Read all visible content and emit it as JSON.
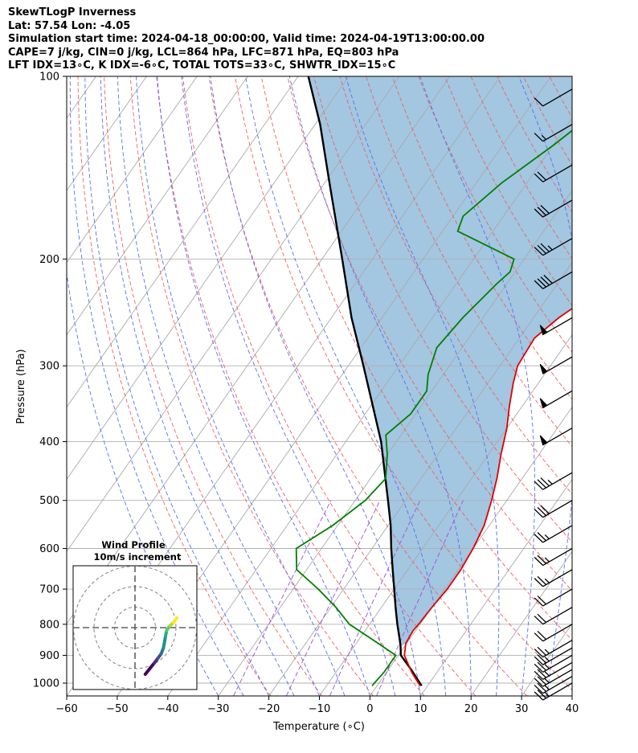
{
  "header": {
    "line1": "SkewTLogP Inverness",
    "line2": "Lat: 57.54   Lon: -4.05",
    "line3": "Simulation start time: 2024-04-18_00:00:00, Valid time: 2024-04-19T13:00:00.00",
    "line4": "CAPE=7 j/kg, CIN=0 j/kg, LCL=864 hPa, LFC=871 hPa, EQ=803 hPa",
    "line5": "LFT IDX=13∘C, K IDX=-6∘C, TOTAL TOTS=33∘C, SHWTR_IDX=15∘C"
  },
  "chart_data": [
    {
      "type": "skew-t log-p",
      "xlabel": "Temperature (∘C)",
      "ylabel": "Pressure (hPa)",
      "xlim": [
        -60,
        40
      ],
      "ylim": [
        1050,
        100
      ],
      "y_scale": "log",
      "x_ticks": [
        "−60",
        "−50",
        "−40",
        "−30",
        "−20",
        "−10",
        "0",
        "10",
        "20",
        "30",
        "40"
      ],
      "x_tick_values": [
        -60,
        -50,
        -40,
        -30,
        -20,
        -10,
        0,
        10,
        20,
        30,
        40
      ],
      "y_ticks": [
        "100",
        "200",
        "300",
        "400",
        "500",
        "600",
        "700",
        "800",
        "900",
        "1000"
      ],
      "y_tick_values": [
        100,
        200,
        300,
        400,
        500,
        600,
        700,
        800,
        900,
        1000
      ],
      "grid": true,
      "colors": {
        "temperature": "#e00000",
        "dewpoint": "#008000",
        "parcel": "#000000",
        "cape_fill": "#7fb0d6",
        "dry_adiabat": "#f06060",
        "moist_adiabat": "#5a6ef0",
        "mixing_ratio": "#a050d0",
        "isotherm": "#aaaaaa"
      },
      "series": [
        {
          "role": "temperature",
          "points": [
            [
              1010,
              8.5
            ],
            [
              960,
              5
            ],
            [
              900,
              1.2
            ],
            [
              860,
              -0.2
            ],
            [
              820,
              -0.5
            ],
            [
              800,
              -0.3
            ],
            [
              750,
              0
            ],
            [
              700,
              0.5
            ],
            [
              650,
              0.5
            ],
            [
              600,
              0
            ],
            [
              550,
              -1
            ],
            [
              500,
              -3
            ],
            [
              460,
              -5
            ],
            [
              420,
              -7.5
            ],
            [
              380,
              -10
            ],
            [
              350,
              -12.5
            ],
            [
              320,
              -15
            ],
            [
              300,
              -16.5
            ],
            [
              270,
              -17
            ],
            [
              250,
              -15
            ],
            [
              220,
              -10
            ],
            [
              200,
              -5
            ],
            [
              180,
              0
            ],
            [
              160,
              5
            ],
            [
              140,
              8
            ],
            [
              120,
              10
            ],
            [
              110,
              13
            ],
            [
              100,
              16
            ]
          ]
        },
        {
          "role": "dewpoint",
          "points": [
            [
              1010,
              -1
            ],
            [
              960,
              -0.5
            ],
            [
              900,
              -0.5
            ],
            [
              850,
              -7
            ],
            [
              800,
              -14
            ],
            [
              750,
              -19
            ],
            [
              700,
              -25
            ],
            [
              650,
              -32
            ],
            [
              600,
              -35
            ],
            [
              550,
              -31
            ],
            [
              500,
              -28
            ],
            [
              460,
              -27
            ],
            [
              420,
              -30
            ],
            [
              390,
              -33
            ],
            [
              360,
              -31
            ],
            [
              330,
              -31
            ],
            [
              310,
              -33
            ],
            [
              280,
              -35
            ],
            [
              250,
              -34
            ],
            [
              220,
              -32
            ],
            [
              210,
              -31
            ],
            [
              200,
              -32
            ],
            [
              180,
              -47
            ],
            [
              170,
              -48
            ],
            [
              150,
              -45
            ],
            [
              130,
              -40
            ],
            [
              110,
              -35
            ],
            [
              100,
              -32
            ]
          ]
        },
        {
          "role": "parcel",
          "points": [
            [
              1010,
              8.8
            ],
            [
              950,
              4.5
            ],
            [
              900,
              0.5
            ],
            [
              870,
              -0.8
            ],
            [
              850,
              -1.8
            ],
            [
              800,
              -4.5
            ],
            [
              750,
              -7.2
            ],
            [
              700,
              -10
            ],
            [
              650,
              -13
            ],
            [
              600,
              -16.2
            ],
            [
              550,
              -19.5
            ],
            [
              500,
              -23.5
            ],
            [
              450,
              -28
            ],
            [
              400,
              -33
            ],
            [
              350,
              -39.5
            ],
            [
              300,
              -47
            ],
            [
              250,
              -56
            ],
            [
              200,
              -66
            ],
            [
              150,
              -79
            ],
            [
              120,
              -89
            ],
            [
              100,
              -98
            ]
          ]
        }
      ],
      "inset": {
        "title_line1": "Wind Profile",
        "title_line2": "10m/s increment",
        "hodograph": [
          [
            0.2,
            -2.0
          ],
          [
            0.6,
            -1.5
          ],
          [
            1.0,
            -1.0
          ],
          [
            1.3,
            -0.6
          ],
          [
            1.6,
            -0.2
          ],
          [
            1.8,
            0.3
          ],
          [
            1.9,
            0.8
          ],
          [
            2.0,
            1.4
          ],
          [
            2.1,
            1.9
          ],
          [
            2.4,
            2.3
          ],
          [
            2.7,
            2.6
          ],
          [
            3.0,
            3.0
          ]
        ],
        "colormap": "viridis"
      },
      "wind_barbs": [
        {
          "p": 1000,
          "speed": 25,
          "direction": 300
        },
        {
          "p": 975,
          "speed": 25,
          "direction": 300
        },
        {
          "p": 950,
          "speed": 25,
          "direction": 300
        },
        {
          "p": 925,
          "speed": 25,
          "direction": 300
        },
        {
          "p": 900,
          "speed": 25,
          "direction": 300
        },
        {
          "p": 875,
          "speed": 25,
          "direction": 300
        },
        {
          "p": 850,
          "speed": 25,
          "direction": 300
        },
        {
          "p": 800,
          "speed": 20,
          "direction": 300
        },
        {
          "p": 750,
          "speed": 20,
          "direction": 300
        },
        {
          "p": 700,
          "speed": 20,
          "direction": 300
        },
        {
          "p": 650,
          "speed": 25,
          "direction": 300
        },
        {
          "p": 600,
          "speed": 25,
          "direction": 300
        },
        {
          "p": 550,
          "speed": 25,
          "direction": 300
        },
        {
          "p": 500,
          "speed": 30,
          "direction": 300
        },
        {
          "p": 450,
          "speed": 35,
          "direction": 300
        },
        {
          "p": 380,
          "speed": 50,
          "direction": 300
        },
        {
          "p": 330,
          "speed": 50,
          "direction": 300
        },
        {
          "p": 290,
          "speed": 50,
          "direction": 300
        },
        {
          "p": 250,
          "speed": 50,
          "direction": 300
        },
        {
          "p": 210,
          "speed": 40,
          "direction": 300
        },
        {
          "p": 185,
          "speed": 35,
          "direction": 300
        },
        {
          "p": 160,
          "speed": 30,
          "direction": 300
        },
        {
          "p": 140,
          "speed": 20,
          "direction": 300
        },
        {
          "p": 120,
          "speed": 15,
          "direction": 300
        },
        {
          "p": 105,
          "speed": 10,
          "direction": 300
        }
      ]
    }
  ]
}
